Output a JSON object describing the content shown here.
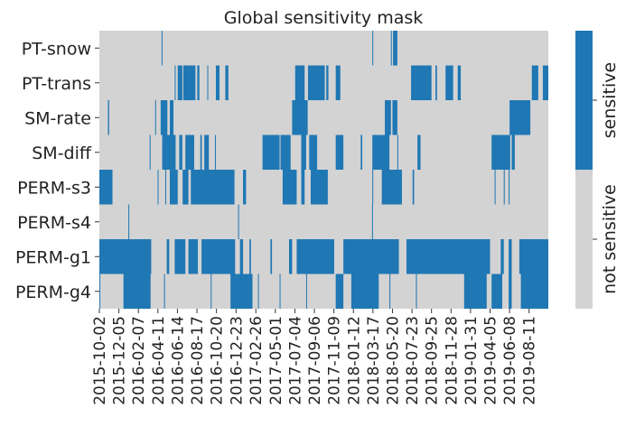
{
  "chart_data": {
    "type": "heatmap",
    "title": "Global sensitivity mask",
    "xlabel": "",
    "ylabel": "",
    "date_range": [
      "2015-10-02",
      "2019-10-13"
    ],
    "rows": [
      "PT-snow",
      "PT-trans",
      "SM-rate",
      "SM-diff",
      "PERM-s3",
      "PERM-s4",
      "PERM-g1",
      "PERM-g4"
    ],
    "x_tick_labels": [
      "2015-10-02",
      "2015-12-05",
      "2016-02-07",
      "2016-04-11",
      "2016-06-14",
      "2016-08-17",
      "2016-10-20",
      "2016-12-23",
      "2017-02-26",
      "2017-05-01",
      "2017-07-04",
      "2017-09-06",
      "2017-11-09",
      "2018-01-12",
      "2018-03-17",
      "2018-05-20",
      "2018-07-23",
      "2018-09-25",
      "2018-11-28",
      "2019-01-31",
      "2019-04-05",
      "2019-06-08",
      "2019-08-11"
    ],
    "colors": {
      "sensitive": "#1f77b4",
      "not_sensitive": "#d3d3d3"
    },
    "colorbar": {
      "labels": [
        "not sensitive",
        "sensitive"
      ]
    },
    "sensitive_periods": {
      "PT-snow": [
        [
          "2016-04-23",
          "2016-04-25"
        ],
        [
          "2018-03-15",
          "2018-03-17"
        ],
        [
          "2018-05-15",
          "2018-05-17"
        ],
        [
          "2018-05-22",
          "2018-06-05"
        ]
      ],
      "PT-trans": [
        [
          "2016-06-05",
          "2016-06-08"
        ],
        [
          "2016-06-15",
          "2016-06-30"
        ],
        [
          "2016-07-03",
          "2016-08-12"
        ],
        [
          "2016-08-18",
          "2016-08-25"
        ],
        [
          "2016-09-20",
          "2016-09-23"
        ],
        [
          "2016-10-18",
          "2016-10-30"
        ],
        [
          "2016-11-18",
          "2016-11-28"
        ],
        [
          "2017-07-05",
          "2017-08-05"
        ],
        [
          "2017-08-16",
          "2017-10-10"
        ],
        [
          "2017-10-15",
          "2017-10-22"
        ],
        [
          "2017-11-15",
          "2017-11-30"
        ],
        [
          "2018-07-20",
          "2018-09-25"
        ],
        [
          "2018-10-08",
          "2018-10-13"
        ],
        [
          "2018-11-10",
          "2018-12-05"
        ],
        [
          "2018-12-20",
          "2018-12-30"
        ],
        [
          "2019-08-20",
          "2019-09-10"
        ],
        [
          "2019-09-25",
          "2019-10-13"
        ]
      ],
      "SM-rate": [
        [
          "2015-10-30",
          "2015-11-03"
        ],
        [
          "2016-04-02",
          "2016-04-04"
        ],
        [
          "2016-04-20",
          "2016-05-12"
        ],
        [
          "2016-05-20",
          "2016-06-01"
        ],
        [
          "2017-06-25",
          "2017-08-15"
        ],
        [
          "2018-04-25",
          "2018-05-15"
        ],
        [
          "2018-05-20",
          "2018-06-05"
        ],
        [
          "2019-06-08",
          "2019-08-15"
        ],
        [
          "2019-06-20",
          "2019-06-25"
        ]
      ],
      "SM-diff": [
        [
          "2016-03-15",
          "2016-03-18"
        ],
        [
          "2016-04-25",
          "2016-06-08"
        ],
        [
          "2016-06-20",
          "2016-06-30"
        ],
        [
          "2016-07-10",
          "2016-08-08"
        ],
        [
          "2016-08-28",
          "2016-09-02"
        ],
        [
          "2016-09-10",
          "2016-09-25"
        ],
        [
          "2016-10-15",
          "2016-10-18"
        ],
        [
          "2017-03-20",
          "2017-05-15"
        ],
        [
          "2017-05-18",
          "2017-06-20"
        ],
        [
          "2017-07-25",
          "2017-08-10"
        ],
        [
          "2017-08-20",
          "2017-09-15"
        ],
        [
          "2017-11-15",
          "2017-12-10"
        ],
        [
          "2018-02-05",
          "2018-02-10"
        ],
        [
          "2018-03-15",
          "2018-05-10"
        ],
        [
          "2018-06-05",
          "2018-06-08"
        ],
        [
          "2018-08-10",
          "2018-08-20"
        ],
        [
          "2019-04-10",
          "2019-06-10"
        ],
        [
          "2019-06-15",
          "2019-06-25"
        ]
      ],
      "PERM-s3": [
        [
          "2015-10-02",
          "2015-11-14"
        ],
        [
          "2016-04-10",
          "2016-04-13"
        ],
        [
          "2016-05-05",
          "2016-05-08"
        ],
        [
          "2016-05-20",
          "2016-06-15"
        ],
        [
          "2016-07-01",
          "2016-07-20"
        ],
        [
          "2016-07-28",
          "2016-12-18"
        ],
        [
          "2017-01-15",
          "2017-01-25"
        ],
        [
          "2017-05-25",
          "2017-07-10"
        ],
        [
          "2017-07-25",
          "2017-08-05"
        ],
        [
          "2017-08-25",
          "2017-10-20"
        ],
        [
          "2018-03-15",
          "2018-03-18"
        ],
        [
          "2018-04-15",
          "2018-06-20"
        ],
        [
          "2018-07-25",
          "2018-07-30"
        ],
        [
          "2019-04-20",
          "2019-04-23"
        ],
        [
          "2019-05-20",
          "2019-05-23"
        ],
        [
          "2019-06-05",
          "2019-06-08"
        ]
      ],
      "PERM-s4": [
        [
          "2016-01-05",
          "2016-01-08"
        ],
        [
          "2016-12-30",
          "2017-01-02"
        ],
        [
          "2018-03-14",
          "2018-03-17"
        ]
      ],
      "PERM-g1": [
        [
          "2015-10-02",
          "2016-03-20"
        ],
        [
          "2016-05-10",
          "2016-05-18"
        ],
        [
          "2016-06-05",
          "2016-07-10"
        ],
        [
          "2016-07-20",
          "2016-08-20"
        ],
        [
          "2016-09-01",
          "2016-12-20"
        ],
        [
          "2017-01-05",
          "2017-01-15"
        ],
        [
          "2017-02-05",
          "2017-02-10"
        ],
        [
          "2017-04-15",
          "2017-04-20"
        ],
        [
          "2017-06-15",
          "2017-06-25"
        ],
        [
          "2017-07-10",
          "2017-11-10"
        ],
        [
          "2017-12-10",
          "2018-06-10"
        ],
        [
          "2018-07-05",
          "2019-04-05"
        ],
        [
          "2019-05-10",
          "2019-05-20"
        ],
        [
          "2019-06-05",
          "2019-06-15"
        ],
        [
          "2019-07-10",
          "2019-10-13"
        ]
      ],
      "PERM-g4": [
        [
          "2015-10-02",
          "2015-10-05"
        ],
        [
          "2015-12-20",
          "2016-03-18"
        ],
        [
          "2016-05-01",
          "2016-05-04"
        ],
        [
          "2016-10-01",
          "2016-10-04"
        ],
        [
          "2016-12-05",
          "2017-02-15"
        ],
        [
          "2017-03-05",
          "2017-03-08"
        ],
        [
          "2017-05-15",
          "2017-05-18"
        ],
        [
          "2017-08-10",
          "2017-08-13"
        ],
        [
          "2017-11-15",
          "2017-12-10"
        ],
        [
          "2018-01-05",
          "2018-04-05"
        ],
        [
          "2018-05-10",
          "2018-05-13"
        ],
        [
          "2018-08-05",
          "2018-08-08"
        ],
        [
          "2019-01-10",
          "2019-03-25"
        ],
        [
          "2019-04-10",
          "2019-05-15"
        ],
        [
          "2019-06-05",
          "2019-06-15"
        ],
        [
          "2019-07-15",
          "2019-10-13"
        ]
      ]
    }
  }
}
